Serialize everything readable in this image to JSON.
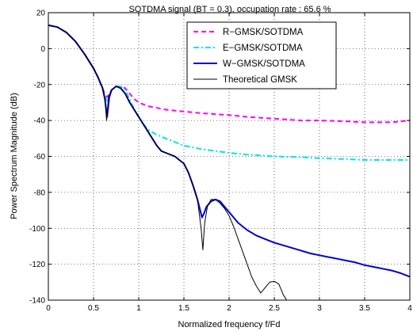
{
  "chart_data": {
    "type": "line",
    "title": "SOTDMA signal (BT = 0.3), occupation rate : 65.6 %",
    "xlabel": "Normalized frequency f/Fd",
    "ylabel": "Power Spectrum Magnitude (dB)",
    "xlim": [
      0,
      4
    ],
    "ylim": [
      -140,
      20
    ],
    "xticks": [
      0,
      0.5,
      1,
      1.5,
      2,
      2.5,
      3,
      3.5,
      4
    ],
    "xtick_labels": [
      "0",
      "0.5",
      "1",
      "1.5",
      "2",
      "2.5",
      "3",
      "3.5",
      "4"
    ],
    "yticks": [
      -140,
      -120,
      -100,
      -80,
      -60,
      -40,
      -20,
      0,
      20
    ],
    "ytick_labels": [
      "-140",
      "-120",
      "-100",
      "-80",
      "-60",
      "-40",
      "-20",
      "0",
      "20"
    ],
    "grid": true,
    "legend_position": "top-right",
    "series": [
      {
        "name": "R−GMSK/SOTDMA",
        "color": "#ff00ff",
        "style": "dashed",
        "x": [
          0,
          0.1,
          0.2,
          0.3,
          0.4,
          0.5,
          0.55,
          0.6,
          0.63,
          0.65,
          0.7,
          0.75,
          0.8,
          0.85,
          0.9,
          0.95,
          1.0,
          1.05,
          1.1,
          1.2,
          1.3,
          1.5,
          1.7,
          2.0,
          2.2,
          2.5,
          2.8,
          3.0,
          3.3,
          3.5,
          3.8,
          4.0
        ],
        "values": [
          13,
          12,
          9,
          4,
          -3,
          -11,
          -16,
          -22,
          -26,
          -27,
          -23,
          -21,
          -21,
          -22,
          -25,
          -28,
          -30,
          -31,
          -32,
          -33,
          -34,
          -35,
          -36,
          -37,
          -38,
          -39,
          -40,
          -40,
          -40.5,
          -41,
          -41,
          -40
        ]
      },
      {
        "name": "E−GMSK/SOTDMA",
        "color": "#00e5e5",
        "style": "dashdot",
        "x": [
          0,
          0.1,
          0.2,
          0.3,
          0.4,
          0.5,
          0.55,
          0.6,
          0.63,
          0.65,
          0.7,
          0.75,
          0.8,
          0.85,
          0.9,
          0.95,
          1.0,
          1.05,
          1.1,
          1.2,
          1.3,
          1.4,
          1.5,
          1.7,
          2.0,
          2.2,
          2.5,
          2.8,
          3.0,
          3.3,
          3.5,
          3.8,
          4.0
        ],
        "values": [
          13,
          12,
          9,
          4,
          -3,
          -11,
          -16,
          -22,
          -27,
          -29,
          -23,
          -21,
          -21,
          -23,
          -28,
          -34,
          -38,
          -42,
          -45,
          -48,
          -50,
          -52,
          -54,
          -56,
          -58,
          -59,
          -60,
          -60.5,
          -61,
          -61.5,
          -62,
          -62,
          -62
        ]
      },
      {
        "name": "W−GMSK/SOTDMA",
        "color": "#0000cc",
        "style": "solid",
        "x": [
          0,
          0.1,
          0.2,
          0.3,
          0.4,
          0.5,
          0.55,
          0.6,
          0.625,
          0.65,
          0.675,
          0.7,
          0.75,
          0.8,
          0.85,
          0.9,
          0.95,
          1.0,
          1.05,
          1.1,
          1.15,
          1.2,
          1.25,
          1.3,
          1.4,
          1.5,
          1.55,
          1.6,
          1.65,
          1.7,
          1.72,
          1.75,
          1.8,
          1.85,
          1.9,
          1.95,
          2.0,
          2.05,
          2.1,
          2.2,
          2.3,
          2.4,
          2.5,
          2.6,
          2.7,
          2.8,
          2.9,
          3.0,
          3.1,
          3.2,
          3.3,
          3.4,
          3.5,
          3.6,
          3.7,
          3.8,
          3.9,
          4.0
        ],
        "values": [
          13,
          12,
          9,
          4,
          -3,
          -11,
          -16,
          -22,
          -28,
          -38,
          -27,
          -23,
          -21,
          -22,
          -25,
          -30,
          -34,
          -38,
          -42,
          -46,
          -50,
          -54,
          -57,
          -58,
          -60,
          -64,
          -69,
          -76,
          -84,
          -94,
          -92,
          -88,
          -85,
          -84,
          -85,
          -88,
          -91,
          -94,
          -97,
          -101,
          -104,
          -106,
          -108,
          -109.5,
          -111,
          -112.5,
          -114,
          -115,
          -116,
          -117,
          -118,
          -119,
          -120.5,
          -121.5,
          -122.5,
          -123.5,
          -125,
          -127
        ]
      },
      {
        "name": "Theoretical GMSK",
        "color": "#000000",
        "style": "solid-thin",
        "x": [
          0,
          0.1,
          0.2,
          0.3,
          0.4,
          0.5,
          0.55,
          0.6,
          0.625,
          0.645,
          0.665,
          0.7,
          0.75,
          0.8,
          0.85,
          0.9,
          0.95,
          1.0,
          1.05,
          1.1,
          1.15,
          1.2,
          1.25,
          1.3,
          1.4,
          1.5,
          1.55,
          1.6,
          1.65,
          1.69,
          1.71,
          1.73,
          1.76,
          1.8,
          1.85,
          1.9,
          1.95,
          2.0,
          2.05,
          2.1,
          2.15,
          2.2,
          2.25,
          2.3,
          2.35,
          2.4,
          2.45,
          2.5,
          2.55,
          2.6,
          2.65
        ],
        "values": [
          13,
          12,
          9,
          4,
          -3,
          -11,
          -16,
          -22,
          -28,
          -40,
          -27,
          -23,
          -21,
          -22,
          -25,
          -30,
          -34,
          -38,
          -42,
          -46,
          -50,
          -54,
          -57,
          -58,
          -60,
          -64,
          -69,
          -76,
          -84,
          -100,
          -112,
          -97,
          -88,
          -84,
          -84,
          -86,
          -89,
          -93,
          -99,
          -106,
          -113,
          -120,
          -127,
          -132,
          -136,
          -133,
          -130,
          -129.5,
          -131,
          -137,
          -141
        ]
      }
    ]
  }
}
